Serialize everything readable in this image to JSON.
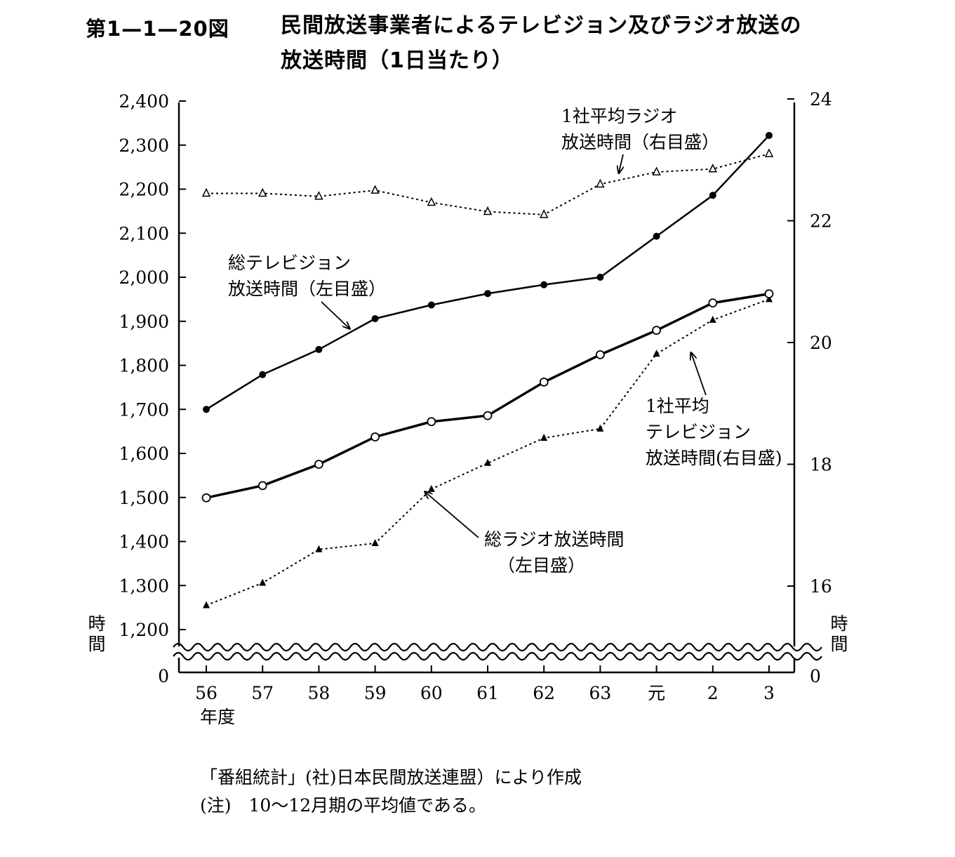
{
  "figure": {
    "number": "第1—1—20図",
    "title_line1": "民間放送事業者によるテレビジョン及びラジオ放送の",
    "title_line2": "放送時間（1日当たり）"
  },
  "source": "「番組統計」(社)日本民間放送連盟）により作成",
  "note": "(注)　10～12月期の平均値である。",
  "chart_data": {
    "type": "line",
    "categories": [
      "56",
      "57",
      "58",
      "59",
      "60",
      "61",
      "62",
      "63",
      "元",
      "2",
      "3"
    ],
    "x_unit_label": "年度",
    "left_axis": {
      "label": "時間",
      "range": [
        1200,
        2400
      ],
      "ticks": [
        1200,
        1300,
        1400,
        1500,
        1600,
        1700,
        1800,
        1900,
        2000,
        2100,
        2200,
        2300,
        2400
      ],
      "tick_labels": [
        "1,200",
        "1,300",
        "1,400",
        "1,500",
        "1,600",
        "1,700",
        "1,800",
        "1,900",
        "2,000",
        "2,100",
        "2,200",
        "2,300",
        "2,400"
      ],
      "zero_label": "0",
      "broken": true
    },
    "right_axis": {
      "label": "時間",
      "range": [
        14.5,
        24
      ],
      "ticks": [
        16,
        18,
        20,
        22,
        24
      ],
      "tick_labels": [
        "16",
        "18",
        "20",
        "22",
        "24"
      ],
      "zero_label": "0",
      "broken": true
    },
    "series": [
      {
        "id": "total_tv",
        "axis": "left",
        "marker": "filled-circle",
        "line": "solid",
        "values": [
          1700,
          1779,
          1836,
          1906,
          1937,
          1963,
          1983,
          2000,
          2093,
          2186,
          2322
        ]
      },
      {
        "id": "total_radio",
        "axis": "left",
        "marker": "filled-triangle",
        "line": "dotted",
        "values": [
          1255,
          1306,
          1382,
          1396,
          1519,
          1578,
          1635,
          1656,
          1826,
          1903,
          1950
        ]
      },
      {
        "id": "avg_radio",
        "axis": "right",
        "marker": "open-triangle",
        "line": "dotted",
        "values": [
          22.45,
          22.45,
          22.4,
          22.5,
          22.3,
          22.15,
          22.1,
          22.6,
          22.8,
          22.85,
          23.1
        ]
      },
      {
        "id": "avg_tv",
        "axis": "right",
        "marker": "open-circle",
        "line": "solid-thick",
        "values": [
          17.45,
          17.65,
          18.0,
          18.45,
          18.7,
          18.8,
          19.35,
          19.8,
          20.2,
          20.65,
          20.8
        ]
      }
    ],
    "annotations": [
      {
        "id": "total_tv_label",
        "lines": [
          "総テレビジョン",
          "放送時間（左目盛）"
        ]
      },
      {
        "id": "avg_radio_label",
        "lines": [
          "1社平均ラジオ",
          "放送時間（右目盛）"
        ]
      },
      {
        "id": "avg_tv_label",
        "lines": [
          "1社平均",
          "テレビジョン",
          "放送時間(右目盛)"
        ]
      },
      {
        "id": "total_radio_label",
        "lines": [
          "総ラジオ放送時間",
          "（左目盛）"
        ]
      }
    ]
  }
}
